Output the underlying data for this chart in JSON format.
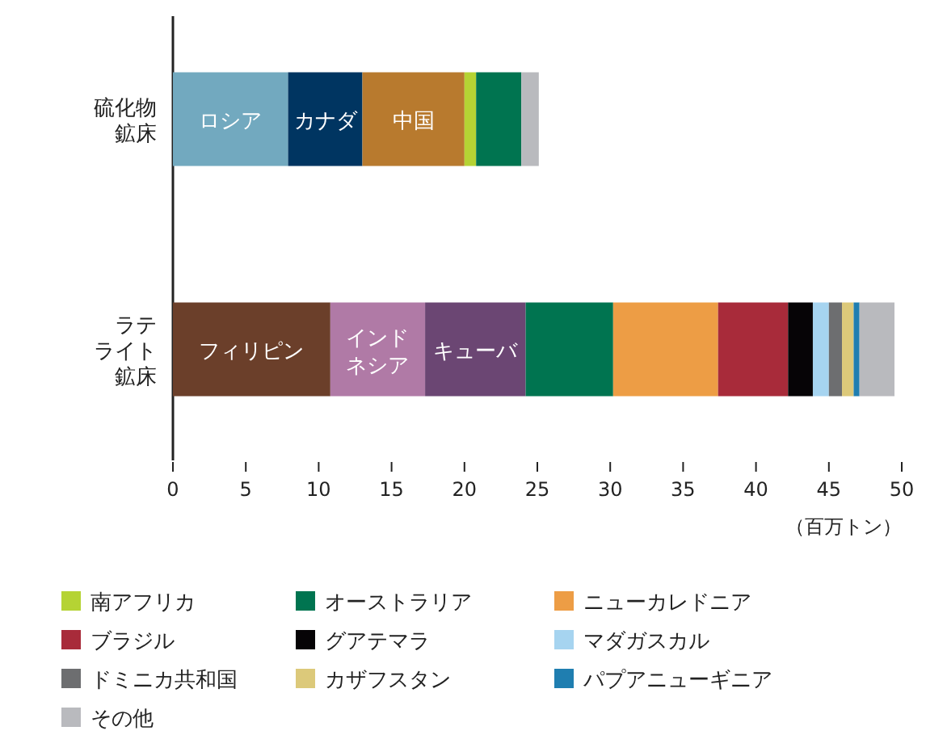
{
  "chart_data": {
    "type": "bar",
    "orientation": "horizontal",
    "stacked": true,
    "categories": [
      "硫化物鉱床",
      "ラテライト鉱床"
    ],
    "xlim": [
      0,
      50
    ],
    "xticks": [
      0,
      5,
      10,
      15,
      20,
      25,
      30,
      35,
      40,
      45,
      50
    ],
    "xlabel": "（百万トン）",
    "legend": "bottom",
    "series": [
      {
        "name": "ロシア",
        "color": "#72a9bf",
        "values": [
          7.9,
          null
        ]
      },
      {
        "name": "カナダ",
        "color": "#003561",
        "values": [
          5.1,
          null
        ]
      },
      {
        "name": "中国",
        "color": "#b87a2e",
        "values": [
          7.0,
          null
        ]
      },
      {
        "name": "フィリピン",
        "color": "#6b3f2a",
        "values": [
          null,
          10.8
        ]
      },
      {
        "name": "インドネシア",
        "color": "#b07aa6",
        "values": [
          null,
          6.5
        ]
      },
      {
        "name": "キューバ",
        "color": "#6b4673",
        "values": [
          null,
          6.9
        ]
      },
      {
        "name": "南アフリカ",
        "color": "#b5d334",
        "values": [
          0.8,
          null
        ]
      },
      {
        "name": "オーストラリア",
        "color": "#007450",
        "values": [
          3.1,
          6.0
        ]
      },
      {
        "name": "ニューカレドニア",
        "color": "#ed9d45",
        "values": [
          null,
          7.2
        ]
      },
      {
        "name": "ブラジル",
        "color": "#a82b3a",
        "values": [
          null,
          4.8
        ]
      },
      {
        "name": "グアテマラ",
        "color": "#060406",
        "values": [
          null,
          1.7
        ]
      },
      {
        "name": "マダガスカル",
        "color": "#a6d4f0",
        "values": [
          null,
          1.1
        ]
      },
      {
        "name": "ドミニカ共和国",
        "color": "#6d6e70",
        "values": [
          null,
          0.9
        ]
      },
      {
        "name": "カザフスタン",
        "color": "#dcc97a",
        "values": [
          null,
          0.8
        ]
      },
      {
        "name": "パプアニューギニア",
        "color": "#1f7eb0",
        "values": [
          null,
          0.4
        ]
      },
      {
        "name": "その他",
        "color": "#b9babe",
        "values": [
          1.2,
          2.4
        ]
      }
    ]
  }
}
